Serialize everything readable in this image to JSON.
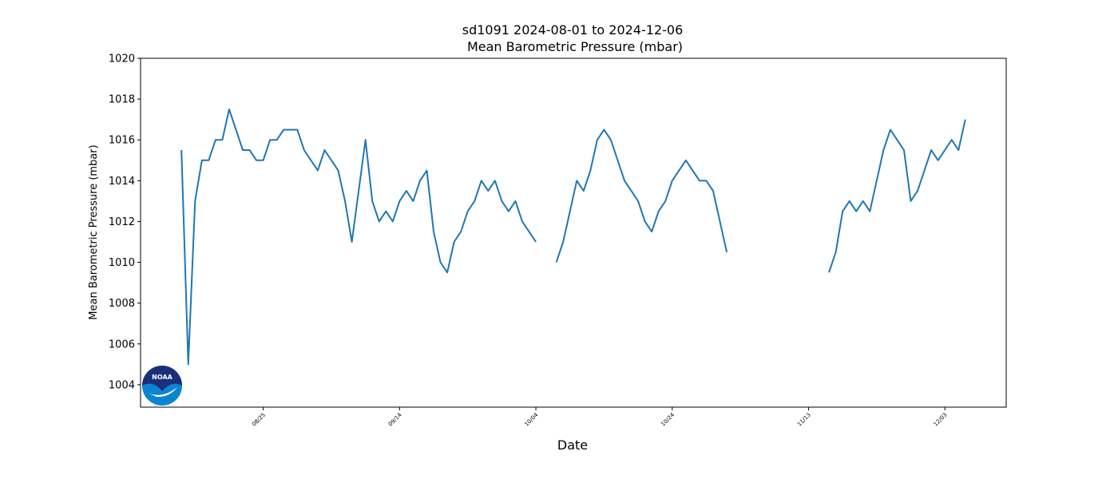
{
  "chart_data": {
    "type": "line",
    "title": "sd1091 2024-08-01 to 2024-12-06",
    "subtitle": "Mean Barometric Pressure (mbar)",
    "x_label": "Date",
    "y_label": "Mean Barometric Pressure (mbar)",
    "logo_text": "NOAA",
    "color": "#1f77b4",
    "x": [
      "08/13",
      "08/14",
      "08/15",
      "08/16",
      "08/17",
      "08/18",
      "08/19",
      "08/20",
      "08/21",
      "08/22",
      "08/23",
      "08/24",
      "08/25",
      "08/26",
      "08/27",
      "08/28",
      "08/29",
      "08/30",
      "08/31",
      "09/01",
      "09/02",
      "09/03",
      "09/04",
      "09/05",
      "09/06",
      "09/07",
      "09/08",
      "09/09",
      "09/10",
      "09/11",
      "09/12",
      "09/13",
      "09/14",
      "09/15",
      "09/16",
      "09/17",
      "09/18",
      "09/19",
      "09/20",
      "09/21",
      "09/22",
      "09/23",
      "09/24",
      "09/25",
      "09/26",
      "09/27",
      "09/28",
      "09/29",
      "09/30",
      "10/01",
      "10/02",
      "10/03",
      "10/04",
      "10/05",
      "10/06",
      "10/07",
      "10/08",
      "10/09",
      "10/10",
      "10/11",
      "10/12",
      "10/13",
      "10/14",
      "10/15",
      "10/16",
      "10/17",
      "10/18",
      "10/19",
      "10/20",
      "10/21",
      "10/22",
      "10/23",
      "10/24",
      "10/25",
      "10/26",
      "10/27",
      "10/28",
      "10/29",
      "10/30",
      "10/31",
      "11/01",
      "11/02",
      "11/03",
      "11/04",
      "11/05",
      "11/06",
      "11/07",
      "11/08",
      "11/09",
      "11/10",
      "11/11",
      "11/12",
      "11/13",
      "11/14",
      "11/15",
      "11/16",
      "11/17",
      "11/18",
      "11/19",
      "11/20",
      "11/21",
      "11/22",
      "11/23",
      "11/24",
      "11/25",
      "11/26",
      "11/27",
      "11/28",
      "11/29",
      "11/30",
      "12/01",
      "12/02",
      "12/03",
      "12/04",
      "12/05",
      "12/06"
    ],
    "values": [
      1015.5,
      1005,
      1013,
      1015,
      1015,
      1016,
      1016,
      1017.5,
      1016.5,
      1015.5,
      1015.5,
      1015,
      1015,
      1016,
      1016,
      1016.5,
      1016.5,
      1016.5,
      1015.5,
      1015,
      1014.5,
      1015.5,
      1015,
      1014.5,
      1013,
      1011,
      1013.5,
      1016,
      1013,
      1012,
      1012.5,
      1012,
      1013,
      1013.5,
      1013,
      1014,
      1014.5,
      1011.5,
      1010,
      1009.5,
      1011,
      1011.5,
      1012.5,
      1013,
      1014,
      1013.5,
      1014,
      1013,
      1012.5,
      1013,
      1012,
      1011.5,
      1011,
      null,
      null,
      1010,
      1011,
      1012.5,
      1014,
      1013.5,
      1014.5,
      1016,
      1016.5,
      1016,
      1015,
      1014,
      1013.5,
      1013,
      1012,
      1011.5,
      1012.5,
      1013,
      1014,
      1014.5,
      1015,
      1014.5,
      1014,
      1014,
      1013.5,
      1012,
      1010.5,
      null,
      null,
      null,
      null,
      null,
      null,
      null,
      null,
      null,
      null,
      null,
      null,
      null,
      null,
      1009.5,
      1010.5,
      1012.5,
      1013,
      1012.5,
      1013,
      1012.5,
      1014,
      1015.5,
      1016.5,
      1016,
      1015.5,
      1013,
      1013.5,
      1014.5,
      1015.5,
      1015,
      1015.5,
      1016,
      1015.5,
      1017
    ],
    "xlim": [
      "08/07",
      "12/12"
    ],
    "xticks": [
      "08/25",
      "09/14",
      "10/04",
      "10/24",
      "11/13",
      "12/03"
    ],
    "ylim": [
      1002.9,
      1020
    ],
    "yticks": [
      1004,
      1006,
      1008,
      1010,
      1012,
      1014,
      1016,
      1018,
      1020
    ],
    "grid": false
  }
}
